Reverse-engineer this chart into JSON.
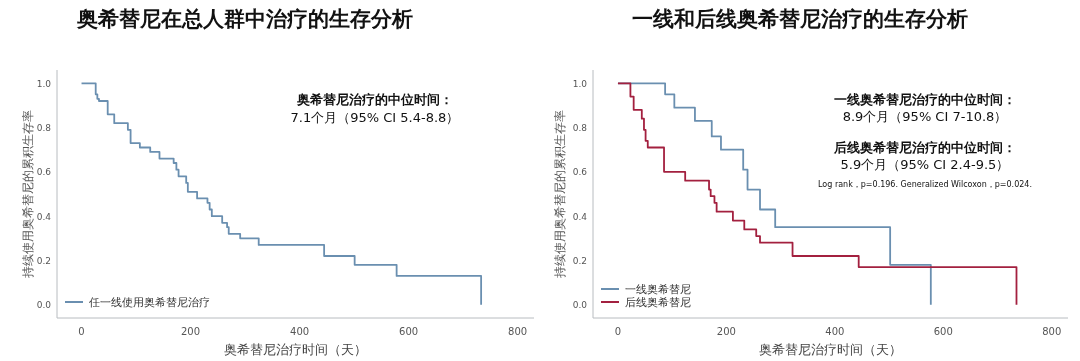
{
  "chart_data": [
    {
      "type": "step",
      "title": "奥希替尼在总人群中治疗的生存分析",
      "xlabel": "奥希替尼治疗时间（天）",
      "ylabel": "持续使用奥希替尼的累积生存率",
      "xlim": [
        -45,
        830
      ],
      "xticks": [
        0,
        200,
        400,
        600,
        800
      ],
      "ylim": [
        -0.06,
        1.06
      ],
      "yticks": [
        {
          "value": 0,
          "label": "0.0"
        },
        {
          "value": 0.2,
          "label": "0.2"
        },
        {
          "value": 0.4,
          "label": "0.4"
        },
        {
          "value": 0.6,
          "label": "0.6"
        },
        {
          "value": 0.8,
          "label": "0.8"
        },
        {
          "value": 1,
          "label": "1.0"
        }
      ],
      "grid": false,
      "legend": "bottom left",
      "marker": "none",
      "line_style": "solid",
      "annotations": [
        "奥希替尼治疗的中位时间：",
        "7.1个月（95% CI  5.4-8.8）"
      ],
      "series": [
        {
          "name": "任一线使用奥希替尼治疗",
          "color": "#6a8fb0",
          "x": [
            0,
            26,
            29,
            32,
            48,
            60,
            85,
            90,
            107,
            126,
            143,
            169,
            174,
            178,
            192,
            195,
            212,
            231,
            235,
            239,
            258,
            267,
            270,
            291,
            325,
            445,
            501,
            578,
            733
          ],
          "values": [
            1,
            0.95,
            0.93,
            0.92,
            0.86,
            0.82,
            0.79,
            0.73,
            0.71,
            0.69,
            0.66,
            0.64,
            0.61,
            0.58,
            0.55,
            0.51,
            0.48,
            0.46,
            0.43,
            0.4,
            0.37,
            0.35,
            0.32,
            0.3,
            0.27,
            0.22,
            0.18,
            0.13,
            0
          ]
        }
      ]
    },
    {
      "type": "step",
      "title": "一线和后线奥希替尼治疗的生存分析",
      "xlabel": "奥希替尼治疗时间（天）",
      "ylabel": "持续使用奥希替尼的累积生存率",
      "xlim": [
        -46,
        830
      ],
      "xticks": [
        0,
        200,
        400,
        600,
        800
      ],
      "ylim": [
        -0.06,
        1.06
      ],
      "yticks": [
        {
          "value": 0,
          "label": "0.0"
        },
        {
          "value": 0.2,
          "label": "0.2"
        },
        {
          "value": 0.4,
          "label": "0.4"
        },
        {
          "value": 0.6,
          "label": "0.6"
        },
        {
          "value": 0.8,
          "label": "0.8"
        },
        {
          "value": 1,
          "label": "1.0"
        }
      ],
      "grid": false,
      "legend": "bottom left",
      "marker": "none",
      "line_style": "solid",
      "annotations": [
        "一线奥希替尼治疗的中位时间：",
        "8.9个月（95% CI 7-10.8）",
        "后线奥希替尼治疗的中位时间：",
        "5.9个月（95% CI 2.4-9.5）",
        "Log rank，p=0.196. Generalized Wilcoxon，p=0.024."
      ],
      "series": [
        {
          "name": "一线奥希替尼",
          "color": "#6a8fb0",
          "x": [
            0,
            87,
            104,
            142,
            173,
            190,
            231,
            239,
            262,
            290,
            502,
            577
          ],
          "values": [
            1,
            0.95,
            0.89,
            0.83,
            0.76,
            0.7,
            0.61,
            0.52,
            0.43,
            0.35,
            0.18,
            0
          ]
        },
        {
          "name": "后线奥希替尼",
          "color": "#a3203f",
          "x": [
            0,
            23,
            29,
            44,
            48,
            51,
            55,
            85,
            124,
            168,
            171,
            178,
            182,
            212,
            233,
            255,
            262,
            322,
            444,
            735
          ],
          "values": [
            1,
            0.94,
            0.88,
            0.84,
            0.79,
            0.74,
            0.71,
            0.6,
            0.56,
            0.52,
            0.49,
            0.46,
            0.42,
            0.38,
            0.34,
            0.31,
            0.28,
            0.22,
            0.17,
            0
          ]
        }
      ]
    }
  ]
}
